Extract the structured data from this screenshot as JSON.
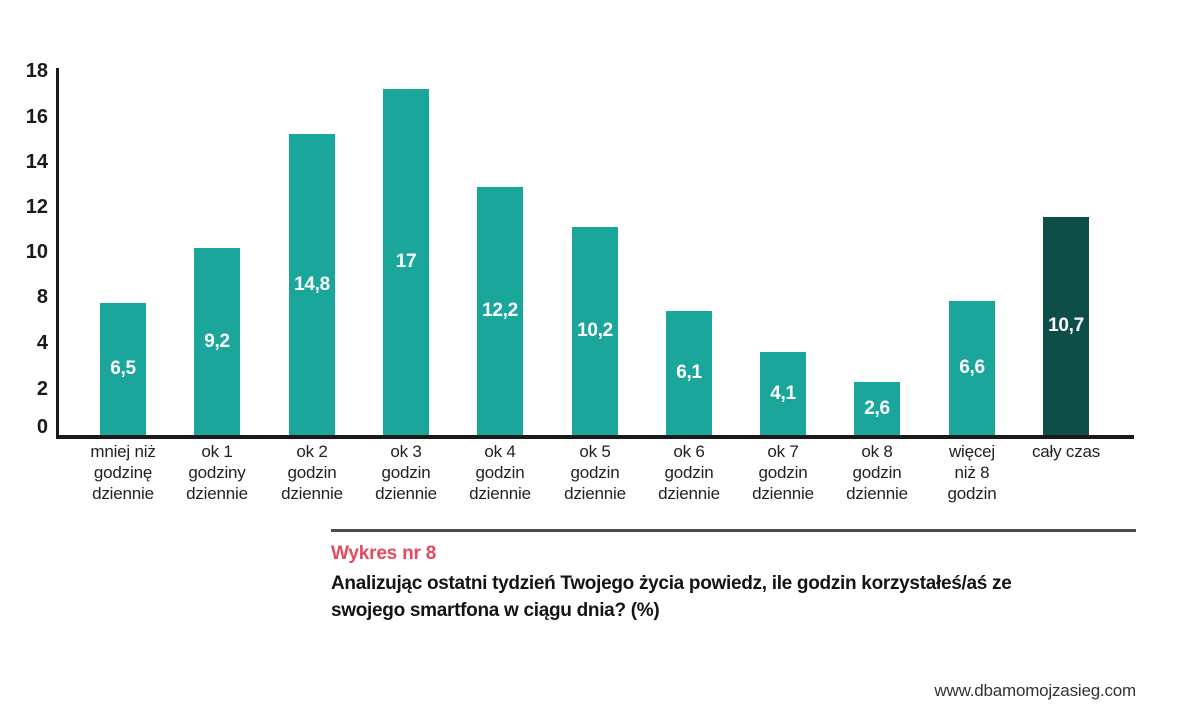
{
  "chart_data": {
    "type": "bar",
    "title": "Wykres nr 8",
    "question": "Analizując ostatni tydzień Twojego życia powiedz, ile godzin korzystałeś/aś ze\nswojego smartfona w ciągu dnia? (%)",
    "categories": [
      "mniej niż\ngodzinę\ndziennie",
      "ok 1\ngodziny\ndziennie",
      "ok 2\ngodzin\ndziennie",
      "ok 3\ngodzin\ndziennie",
      "ok 4\ngodzin\ndziennie",
      "ok 5\ngodzin\ndziennie",
      "ok 6\ngodzin\ndziennie",
      "ok 7\ngodzin\ndziennie",
      "ok 8\ngodzin\ndziennie",
      "więcej\nniż 8\ngodzin",
      "cały czas"
    ],
    "values": [
      6.5,
      9.2,
      14.8,
      17,
      12.2,
      10.2,
      6.1,
      4.1,
      2.6,
      6.6,
      10.7
    ],
    "value_labels": [
      "6,5",
      "9,2",
      "14,8",
      "17",
      "12,2",
      "10,2",
      "6,1",
      "4,1",
      "2,6",
      "6,6",
      "10,7"
    ],
    "y_ticks": [
      "18",
      "16",
      "14",
      "12",
      "10",
      "8",
      "4",
      "2",
      "0"
    ],
    "ylim": [
      0,
      18
    ],
    "grid": false,
    "legend": false,
    "ylabel": "",
    "xlabel": "",
    "bar_color": "#1aa69a",
    "highlight_bar_color": "#0d4f48",
    "highlight_index": 10,
    "value_label_color": "#ffffff",
    "axis_color": "#1a1a1a",
    "title_color": "#e8485e"
  },
  "footer": {
    "url": "www.dbamomojzasieg.com"
  }
}
